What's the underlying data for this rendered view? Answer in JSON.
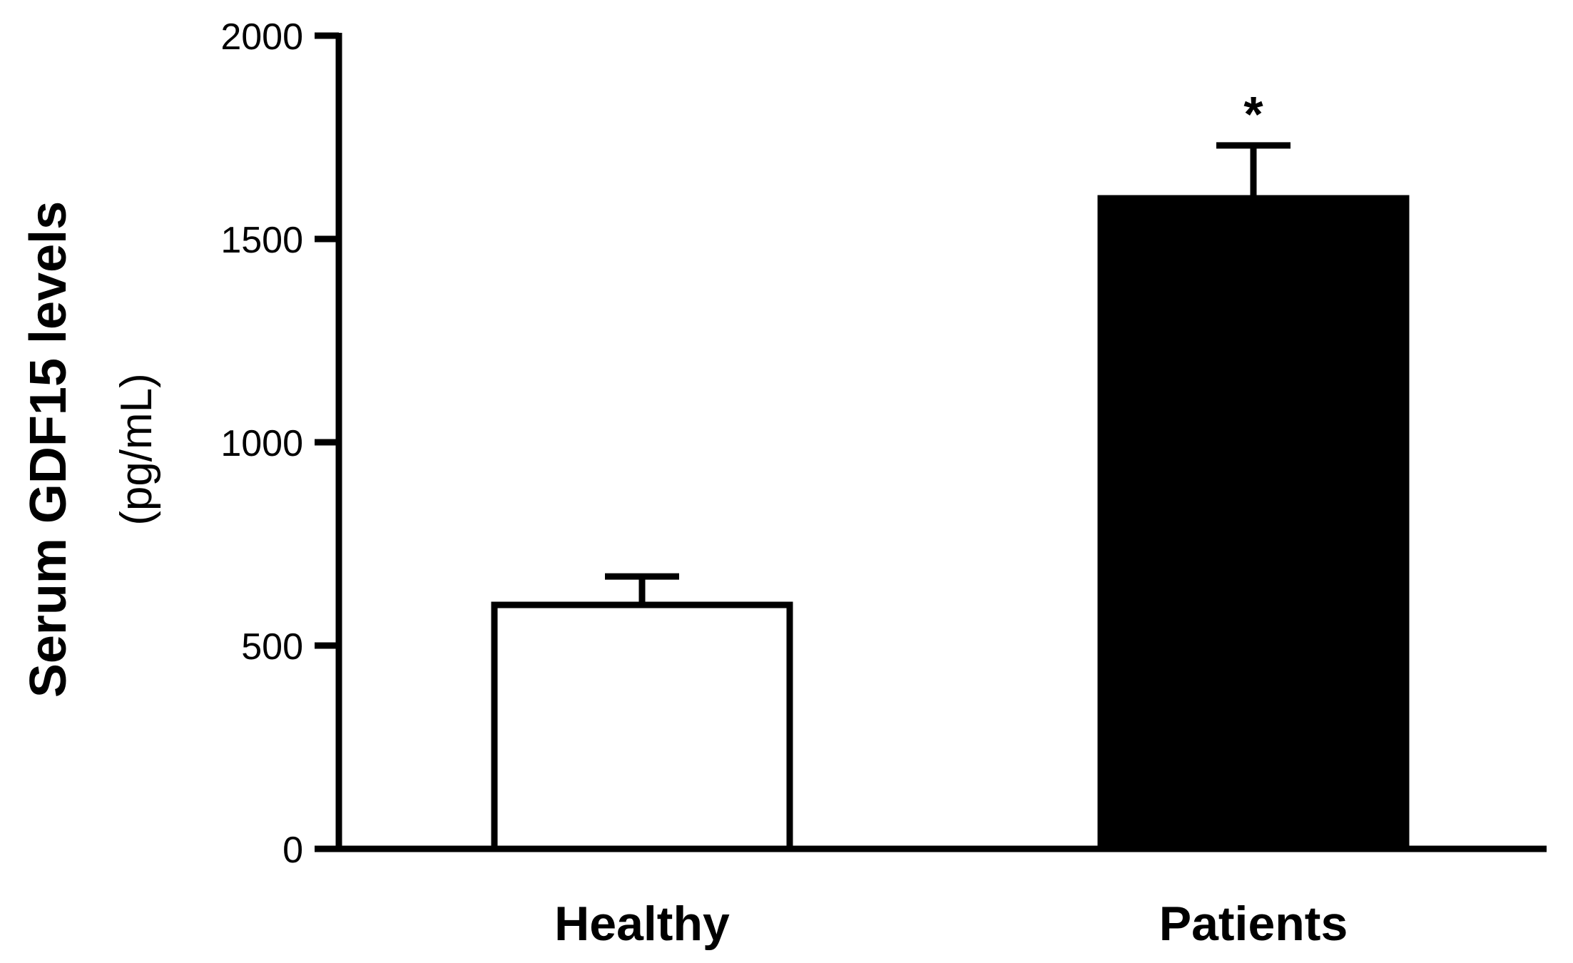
{
  "chart_data": {
    "type": "bar",
    "categories": [
      "Healthy",
      "Patients"
    ],
    "values": [
      600,
      1600
    ],
    "error_upper": [
      670,
      1730
    ],
    "significance": [
      "",
      "*"
    ],
    "bar_fill": [
      "#ffffff",
      "#000000"
    ],
    "ylabel_line1": "Serum GDF15 levels",
    "ylabel_line2": "(pg/mL)",
    "ylim": [
      0,
      2000
    ],
    "yticks": [
      0,
      500,
      1000,
      1500,
      2000
    ],
    "grid": false
  }
}
